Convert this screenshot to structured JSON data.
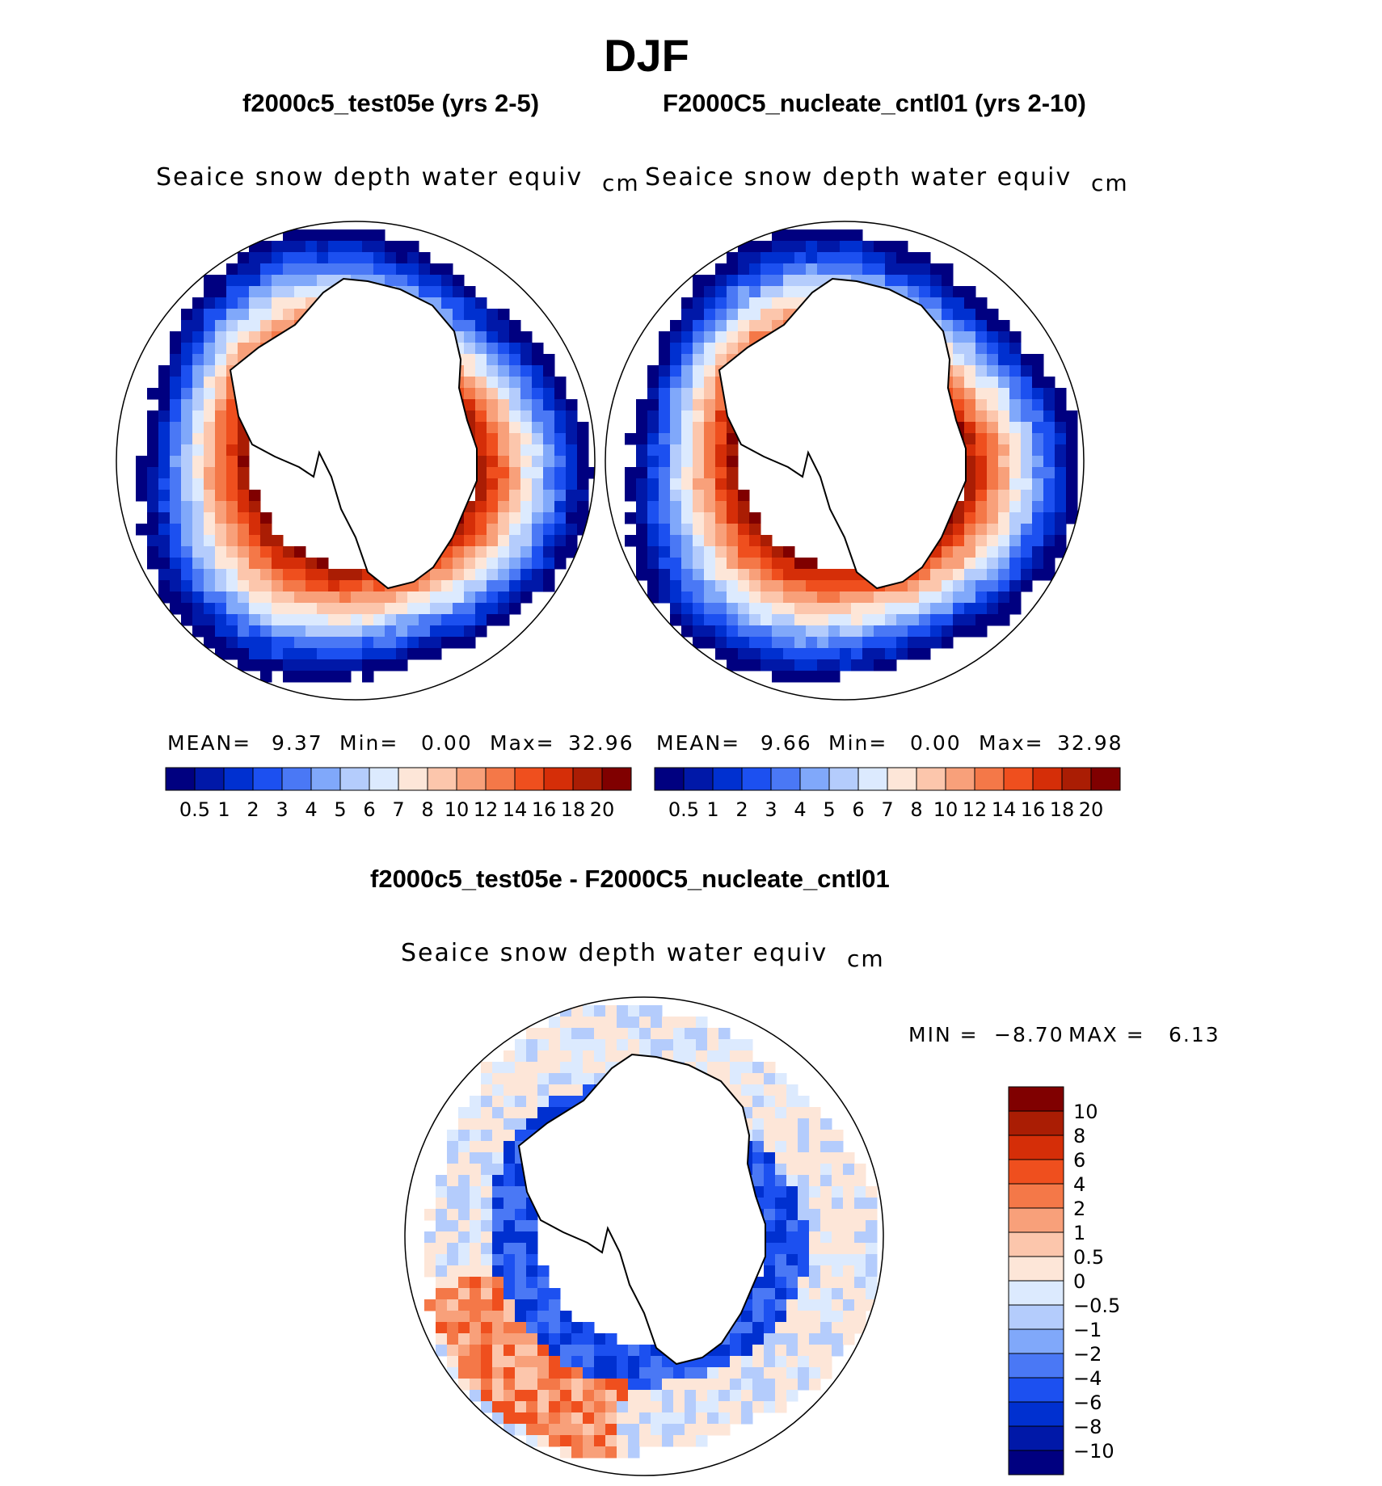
{
  "season": "DJF",
  "panels": {
    "left": {
      "title": "f2000c5_test05e (yrs 2-5)",
      "variable": "Seaice snow depth water equiv",
      "units": "cm",
      "stats": {
        "mean_label": "MEAN=",
        "mean": "9.37",
        "min_label": "Min=",
        "min": "0.00",
        "max_label": "Max=",
        "max": "32.96"
      }
    },
    "right": {
      "title": "F2000C5_nucleate_cntl01 (yrs 2-10)",
      "variable": "Seaice snow depth water equiv",
      "units": "cm",
      "stats": {
        "mean_label": "MEAN=",
        "mean": "9.66",
        "min_label": "Min=",
        "min": "0.00",
        "max_label": "Max=",
        "max": "32.98"
      }
    },
    "diff": {
      "title": "f2000c5_test05e - F2000C5_nucleate_cntl01",
      "variable": "Seaice snow depth water equiv",
      "units": "cm",
      "stats": {
        "min_label": "MIN =",
        "min": "−8.70",
        "max_label": "MAX =",
        "max": "6.13"
      }
    }
  },
  "colorbar_abs": {
    "labels": [
      "0.5",
      "1",
      "2",
      "3",
      "4",
      "5",
      "6",
      "7",
      "8",
      "10",
      "12",
      "14",
      "16",
      "18",
      "20"
    ],
    "colors": [
      "#000080",
      "#0018a8",
      "#0030d0",
      "#1c50f0",
      "#4a78f5",
      "#80a8fa",
      "#b4ccfc",
      "#dceafe",
      "#fde6d8",
      "#fcc6ac",
      "#f8a07a",
      "#f47848",
      "#ef4f1e",
      "#d52e08",
      "#aa1d04",
      "#800000"
    ]
  },
  "colorbar_diff": {
    "labels": [
      "10",
      "8",
      "6",
      "4",
      "2",
      "1",
      "0.5",
      "0",
      "−0.5",
      "−1",
      "−2",
      "−4",
      "−6",
      "−8",
      "−10"
    ],
    "colors": [
      "#800000",
      "#aa1d04",
      "#d52e08",
      "#ef4f1e",
      "#f47848",
      "#f8a07a",
      "#fcc6ac",
      "#fde6d8",
      "#dceafe",
      "#b4ccfc",
      "#80a8fa",
      "#4a78f5",
      "#1c50f0",
      "#0030d0",
      "#0018a8",
      "#000080"
    ]
  }
}
